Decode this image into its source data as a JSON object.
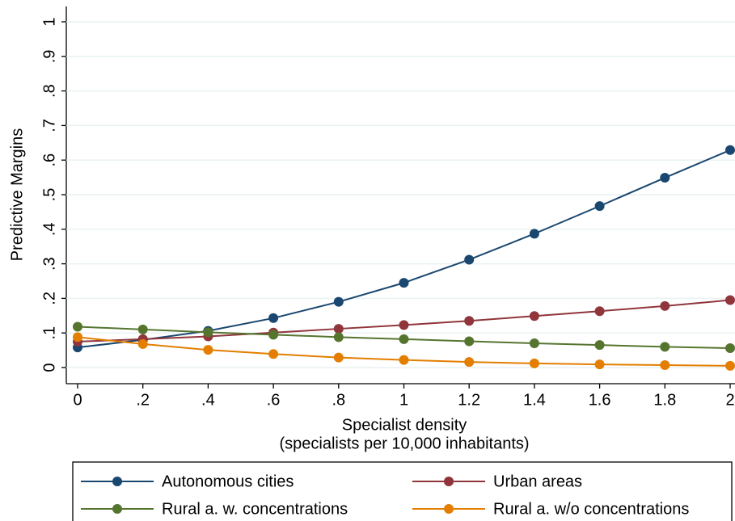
{
  "chart_data": {
    "type": "line",
    "y_label": "Predictive Margins",
    "x_label": [
      "Specialist density",
      "(specialists per 10,000 inhabitants)"
    ],
    "x": [
      0,
      0.2,
      0.4,
      0.6,
      0.8,
      1,
      1.2,
      1.4,
      1.6,
      1.8,
      2
    ],
    "series": [
      {
        "name": "Autonomous cities",
        "color": "#1a476f",
        "values": [
          0.058,
          0.08,
          0.106,
          0.143,
          0.19,
          0.245,
          0.312,
          0.387,
          0.467,
          0.549,
          0.629
        ]
      },
      {
        "name": "Urban areas",
        "color": "#90353b",
        "values": [
          0.075,
          0.082,
          0.09,
          0.101,
          0.112,
          0.123,
          0.135,
          0.149,
          0.163,
          0.178,
          0.195
        ]
      },
      {
        "name": "Rural a. w. concentrations",
        "color": "#55752f",
        "values": [
          0.118,
          0.11,
          0.102,
          0.095,
          0.088,
          0.082,
          0.076,
          0.07,
          0.065,
          0.06,
          0.056
        ]
      },
      {
        "name": "Rural a. w/o concentrations",
        "color": "#e37e00",
        "values": [
          0.088,
          0.068,
          0.051,
          0.039,
          0.029,
          0.022,
          0.016,
          0.012,
          0.009,
          0.007,
          0.005
        ]
      }
    ],
    "xlim": [
      0,
      2
    ],
    "xticks": [
      0,
      {
        "value": 0.2,
        "label": ".2"
      },
      {
        "value": 0.4,
        "label": ".4"
      },
      {
        "value": 0.6,
        "label": ".6"
      },
      {
        "value": 0.8,
        "label": ".8"
      },
      1,
      1.2,
      1.4,
      1.6,
      1.8,
      2
    ],
    "ylim": [
      0,
      1
    ],
    "yticks": [
      0,
      {
        "value": 0.1,
        "label": ".1"
      },
      {
        "value": 0.2,
        "label": ".2"
      },
      {
        "value": 0.3,
        "label": ".3"
      },
      {
        "value": 0.4,
        "label": ".4"
      },
      {
        "value": 0.5,
        "label": ".5"
      },
      {
        "value": 0.6,
        "label": ".6"
      },
      {
        "value": 0.7,
        "label": ".7"
      },
      {
        "value": 0.8,
        "label": ".8"
      },
      {
        "value": 0.9,
        "label": ".9"
      },
      1
    ],
    "grid": true
  }
}
